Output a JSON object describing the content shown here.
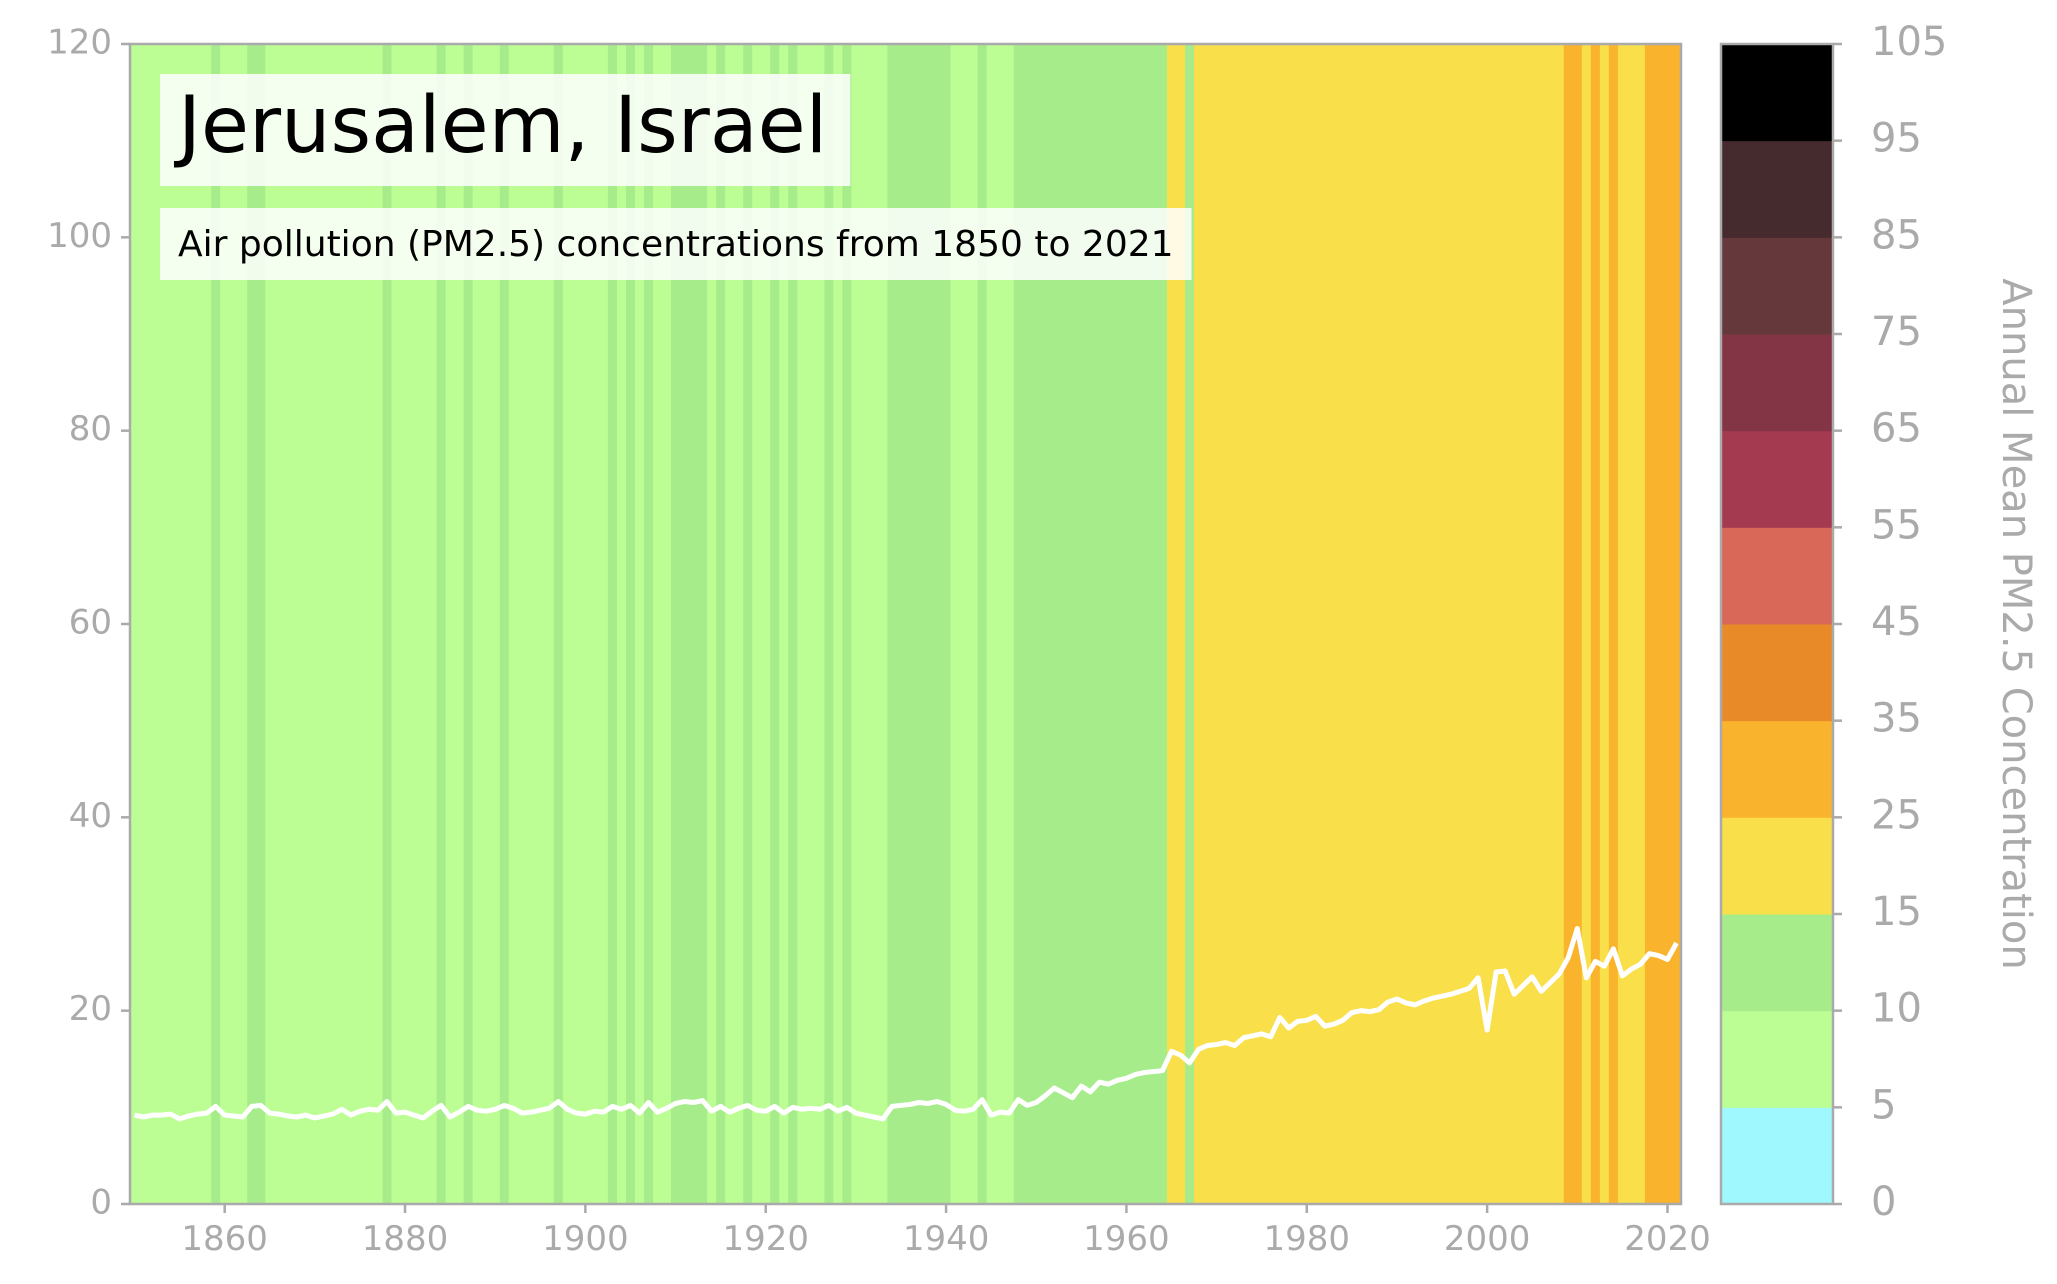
{
  "chart_data": {
    "type": "stripes-line",
    "title": "Jerusalem, Israel",
    "subtitle": "Air pollution (PM2.5) concentrations from 1850 to 2021",
    "x_start": 1850,
    "values": [
      9.2,
      9.0,
      9.2,
      9.2,
      9.3,
      8.8,
      9.1,
      9.3,
      9.4,
      10.1,
      9.2,
      9.1,
      9.0,
      10.1,
      10.2,
      9.4,
      9.3,
      9.1,
      9.0,
      9.2,
      8.9,
      9.1,
      9.3,
      9.8,
      9.2,
      9.6,
      9.8,
      9.7,
      10.6,
      9.4,
      9.5,
      9.2,
      8.9,
      9.6,
      10.2,
      9.0,
      9.5,
      10.1,
      9.7,
      9.6,
      9.8,
      10.2,
      9.9,
      9.4,
      9.5,
      9.7,
      9.9,
      10.6,
      9.8,
      9.4,
      9.3,
      9.6,
      9.5,
      10.1,
      9.8,
      10.2,
      9.4,
      10.5,
      9.5,
      9.9,
      10.4,
      10.6,
      10.5,
      10.7,
      9.6,
      10.1,
      9.5,
      9.9,
      10.2,
      9.7,
      9.6,
      10.1,
      9.4,
      10.0,
      9.8,
      9.9,
      9.8,
      10.2,
      9.6,
      10.0,
      9.4,
      9.2,
      9.0,
      8.8,
      10.1,
      10.2,
      10.3,
      10.5,
      10.4,
      10.6,
      10.3,
      9.7,
      9.6,
      9.8,
      10.8,
      9.2,
      9.5,
      9.4,
      10.8,
      10.2,
      10.5,
      11.2,
      12.0,
      11.5,
      11.0,
      12.2,
      11.6,
      12.6,
      12.4,
      12.8,
      13.0,
      13.4,
      13.6,
      13.7,
      13.8,
      15.8,
      15.4,
      14.6,
      16.0,
      16.4,
      16.5,
      16.7,
      16.4,
      17.2,
      17.4,
      17.6,
      17.3,
      19.3,
      18.2,
      18.9,
      19.0,
      19.4,
      18.4,
      18.6,
      19.0,
      19.8,
      20.0,
      19.9,
      20.1,
      20.9,
      21.2,
      20.8,
      20.6,
      21.0,
      21.3,
      21.5,
      21.7,
      22.0,
      22.3,
      23.4,
      18.0,
      24.0,
      24.1,
      21.7,
      22.6,
      23.5,
      22.0,
      22.9,
      23.8,
      25.5,
      28.5,
      23.4,
      25.1,
      24.6,
      26.4,
      23.6,
      24.3,
      24.8,
      25.9,
      25.7,
      25.3,
      27.0
    ],
    "line_color": "#ffffff",
    "xlim": [
      1849.5,
      2021.5
    ],
    "xticks": [
      1860,
      1880,
      1900,
      1920,
      1940,
      1960,
      1980,
      2000,
      2020
    ],
    "ylim": [
      0,
      120
    ],
    "yticks": [
      0,
      20,
      40,
      60,
      80,
      100,
      120
    ],
    "colorbar": {
      "label": "Annual Mean PM2.5 Concentration",
      "ticks": [
        0,
        5,
        10,
        15,
        25,
        35,
        45,
        55,
        65,
        75,
        85,
        95,
        105
      ],
      "colors": [
        "#9ef8fd",
        "#bcfe94",
        "#a6ec8b",
        "#f9df4a",
        "#fab32d",
        "#e78a27",
        "#d96858",
        "#a33a50",
        "#833545",
        "#65383b",
        "#452b2e",
        "#000000"
      ]
    }
  }
}
